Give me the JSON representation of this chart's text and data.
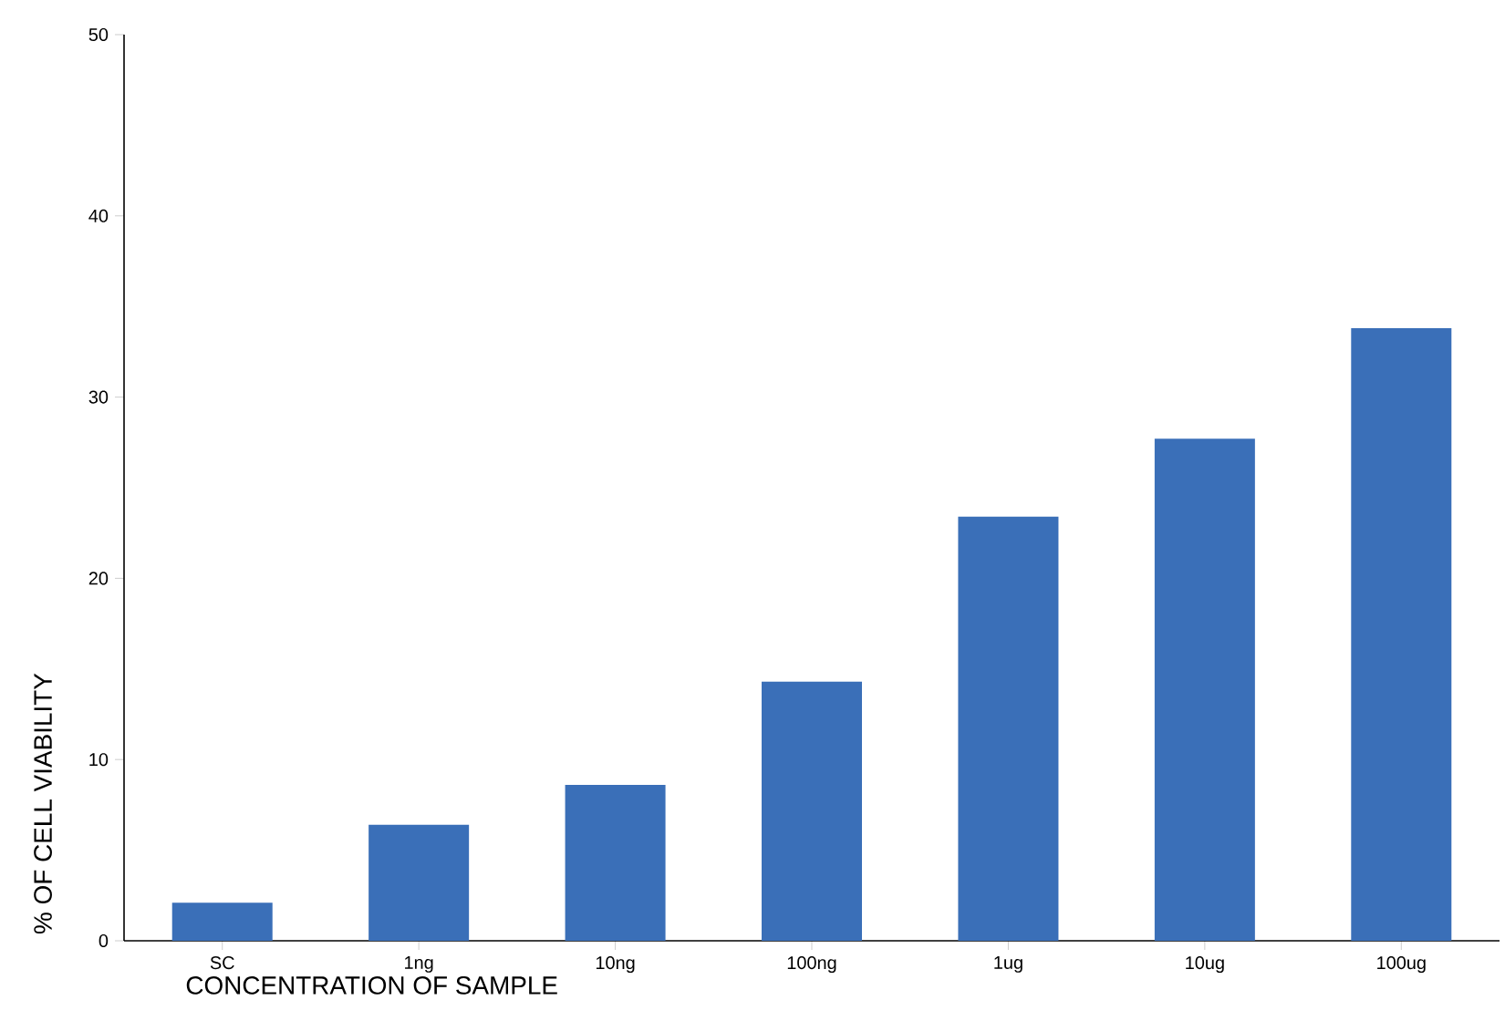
{
  "chart_data": {
    "type": "bar",
    "xlabel": "CONCENTRATION OF SAMPLE",
    "ylabel": "% OF CELL VIABILITY",
    "categories": [
      "SC",
      "1ng",
      "10ng",
      "100ng",
      "1ug",
      "10ug",
      "100ug"
    ],
    "values": [
      2.1,
      6.4,
      8.6,
      14.3,
      23.4,
      27.7,
      33.8
    ],
    "color": "#3a6fb8",
    "ylim": [
      0,
      50
    ],
    "yticks": [
      0,
      10,
      20,
      30,
      40,
      50
    ],
    "grid": false
  }
}
